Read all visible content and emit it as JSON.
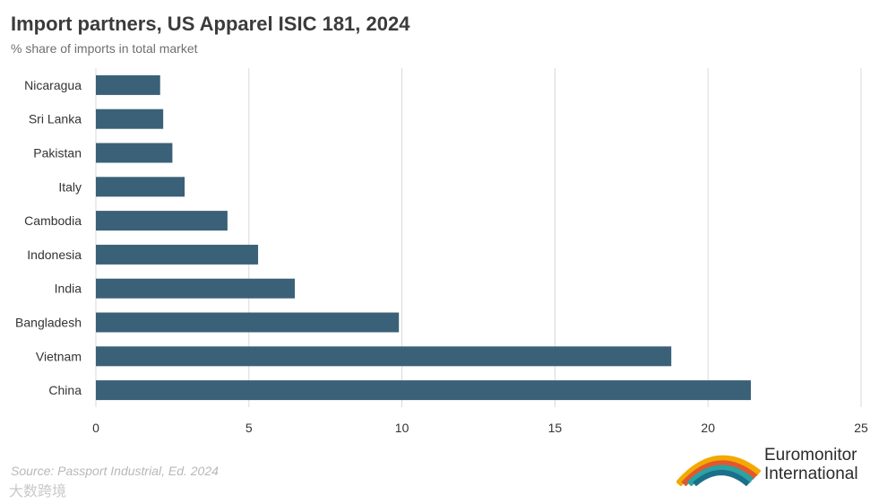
{
  "chart_data": {
    "type": "bar",
    "orientation": "horizontal",
    "title": "Import partners, US Apparel ISIC 181, 2024",
    "subtitle": "% share of imports in total market",
    "categories": [
      "Nicaragua",
      "Sri Lanka",
      "Pakistan",
      "Italy",
      "Cambodia",
      "Indonesia",
      "India",
      "Bangladesh",
      "Vietnam",
      "China"
    ],
    "values": [
      2.1,
      2.2,
      2.5,
      2.9,
      4.3,
      5.3,
      6.5,
      9.9,
      18.8,
      21.4
    ],
    "xlim": [
      0,
      25
    ],
    "xticks": [
      0,
      5,
      10,
      15,
      20,
      25
    ],
    "grid": true,
    "bar_color": "#3a6178"
  },
  "source": "Source: Passport Industrial, Ed. 2024",
  "watermark": "大数跨境",
  "logo": {
    "line1": "Euromonitor",
    "line2": "International"
  }
}
